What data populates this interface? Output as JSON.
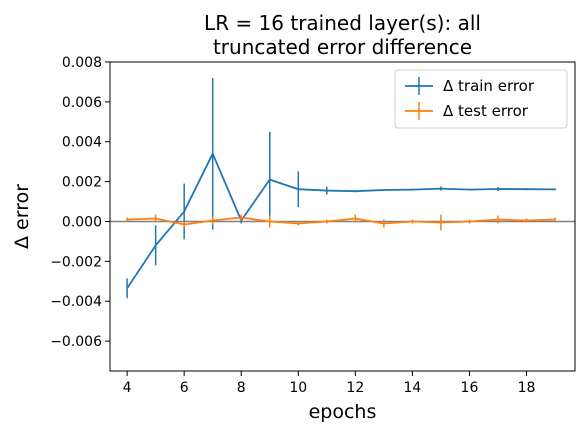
{
  "chart_data": {
    "type": "line",
    "title": "LR = 16 trained layer(s): all\ntruncated error difference",
    "xlabel": "epochs",
    "ylabel": "Δ error",
    "xlim": [
      3.4,
      19.7
    ],
    "ylim": [
      -0.0075,
      0.008
    ],
    "xticks": [
      4,
      6,
      8,
      10,
      12,
      14,
      16,
      18
    ],
    "xtick_labels": [
      "4",
      "6",
      "8",
      "10",
      "12",
      "14",
      "16",
      "18"
    ],
    "yticks": [
      0.008,
      0.006,
      0.004,
      0.002,
      0.0,
      -0.002,
      -0.004,
      -0.006
    ],
    "ytick_labels": [
      "0.008",
      "0.006",
      "0.004",
      "0.002",
      "0.000",
      "−0.002",
      "−0.004",
      "−0.006"
    ],
    "reference_line_y": 0.0,
    "grid": false,
    "legend": {
      "placement": "top-right"
    },
    "series": [
      {
        "name": "Δ train error",
        "color": "#1f77b4",
        "x": [
          4,
          5,
          6,
          7,
          8,
          9,
          10,
          11,
          12,
          13,
          14,
          15,
          16,
          17,
          18,
          19
        ],
        "y": [
          -0.00335,
          -0.0012,
          0.0005,
          0.0034,
          5e-05,
          0.0021,
          0.00162,
          0.00155,
          0.00152,
          0.00158,
          0.0016,
          0.00165,
          0.0016,
          0.00163,
          0.00162,
          0.00161
        ],
        "err": [
          0.0005,
          0.001,
          0.0014,
          0.0038,
          0.00015,
          0.0024,
          0.0009,
          0.0002,
          5e-05,
          5e-05,
          5e-05,
          0.0001,
          5e-05,
          0.0001,
          5e-05,
          5e-05
        ]
      },
      {
        "name": "Δ test error",
        "color": "#ff7f0e",
        "x": [
          4,
          5,
          6,
          7,
          8,
          9,
          10,
          11,
          12,
          13,
          14,
          15,
          16,
          17,
          18,
          19
        ],
        "y": [
          0.0001,
          0.00015,
          -0.00015,
          5e-05,
          0.0002,
          0.0,
          -0.0001,
          0.0,
          0.00015,
          -0.0001,
          0.0,
          -5e-05,
          0.0,
          0.0001,
          5e-05,
          0.0001
        ],
        "err": [
          0.0001,
          0.0002,
          0.00015,
          0.0002,
          0.00015,
          0.0003,
          0.0001,
          0.0001,
          0.0002,
          0.0002,
          0.0001,
          0.0004,
          0.0001,
          0.0002,
          0.0001,
          0.0001
        ]
      }
    ]
  }
}
